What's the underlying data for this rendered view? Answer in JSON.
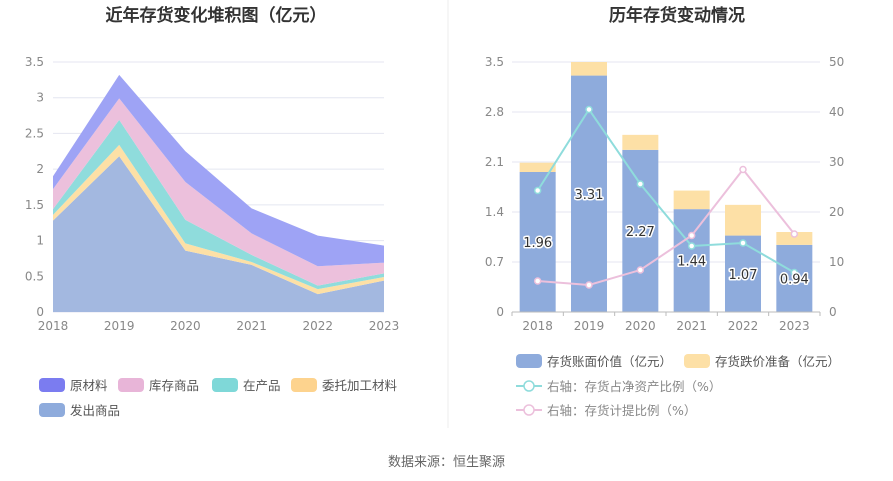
{
  "source_text": "数据来源：恒生聚源",
  "chart_data": [
    {
      "type": "area",
      "stacked": true,
      "title": "近年存货变化堆积图（亿元）",
      "x": [
        "2018",
        "2019",
        "2020",
        "2021",
        "2022",
        "2023"
      ],
      "y_ticks": [
        "0",
        "0.5",
        "1",
        "1.5",
        "2",
        "2.5",
        "3",
        "3.5"
      ],
      "ylim": [
        0,
        3.5
      ],
      "series": [
        {
          "name": "发出商品",
          "color": "#a3b8e0",
          "values": [
            1.28,
            2.18,
            0.86,
            0.66,
            0.25,
            0.44
          ]
        },
        {
          "name": "委托加工材料",
          "color": "#fde0a6",
          "values": [
            0.08,
            0.16,
            0.1,
            0.04,
            0.07,
            0.05
          ]
        },
        {
          "name": "在产品",
          "color": "#8fdcdc",
          "values": [
            0.08,
            0.35,
            0.33,
            0.1,
            0.05,
            0.05
          ]
        },
        {
          "name": "库存商品",
          "color": "#ecc0dc",
          "values": [
            0.28,
            0.3,
            0.53,
            0.3,
            0.27,
            0.15
          ]
        },
        {
          "name": "原材料",
          "color": "#9ea3f5",
          "values": [
            0.18,
            0.33,
            0.43,
            0.35,
            0.43,
            0.24
          ]
        }
      ],
      "legend_order": [
        "原材料",
        "库存商品",
        "在产品",
        "委托加工材料",
        "发出商品"
      ],
      "legend_colors": [
        "#7b7cf0",
        "#e8b5d8",
        "#7fd8d8",
        "#fdd38e",
        "#8eabdc"
      ],
      "legend_position": "bottom",
      "grid": true
    },
    {
      "type": "bar",
      "title": "历年存货变动情况",
      "x": [
        "2018",
        "2019",
        "2020",
        "2021",
        "2022",
        "2023"
      ],
      "y_left_ticks": [
        "0",
        "0.7",
        "1.4",
        "2.1",
        "2.8",
        "3.5"
      ],
      "y_right_ticks": [
        "0",
        "10",
        "20",
        "30",
        "40",
        "50"
      ],
      "ylim_left": [
        0,
        3.5
      ],
      "ylim_right": [
        0,
        50
      ],
      "bar_series": [
        {
          "name": "存货账面价值（亿元）",
          "color": "#8eabdc",
          "values": [
            1.96,
            3.31,
            2.27,
            1.44,
            1.07,
            0.94
          ],
          "labels": [
            "1.96",
            "3.31",
            "2.27",
            "1.44",
            "1.07",
            "0.94"
          ]
        },
        {
          "name": "存货跌价准备（亿元）",
          "color": "#fde0a6",
          "values": [
            0.13,
            0.19,
            0.21,
            0.26,
            0.43,
            0.18
          ]
        }
      ],
      "line_series": [
        {
          "name": "右轴：存货占净资产比例（%）",
          "color": "#8fdcdc",
          "values": [
            24.3,
            40.5,
            25.6,
            13.2,
            13.8,
            7.9
          ]
        },
        {
          "name": "右轴：存货计提比例（%）",
          "color": "#ecc0dc",
          "values": [
            6.2,
            5.4,
            8.4,
            15.3,
            28.5,
            15.6
          ]
        }
      ],
      "legend_position": "bottom",
      "grid": true
    }
  ]
}
